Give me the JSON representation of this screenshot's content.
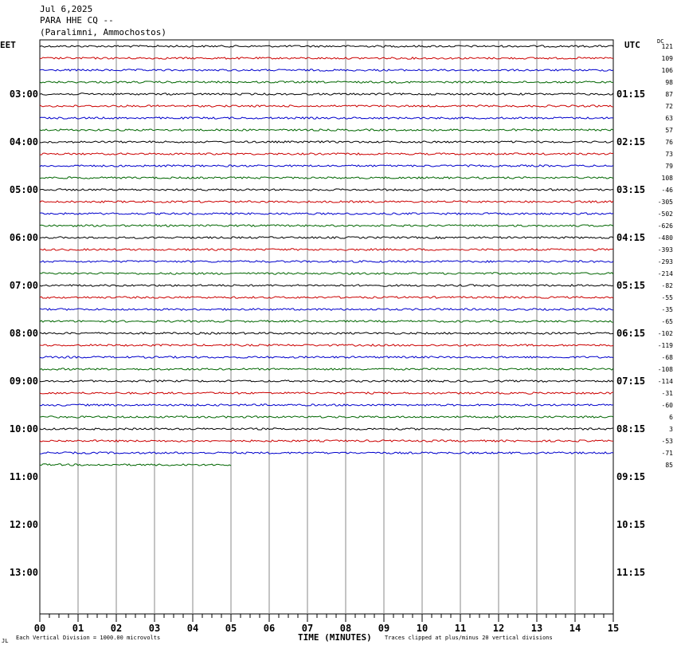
{
  "header": {
    "date": "Jul 6,2025",
    "station": "PARA HHE CQ --",
    "location": "(Paralimni, Ammochostos)"
  },
  "labels": {
    "left_tz": "EET",
    "right_tz": "UTC",
    "dc": "DC"
  },
  "footer": {
    "scale": "Each Vertical Division = 1000.00 microvolts",
    "xlabel": "TIME (MINUTES)",
    "clip": "Traces clipped at plus/minus 20 vertical divisions",
    "mark": "JL"
  },
  "chart_data": {
    "type": "line",
    "title": "PARA HHE CQ --",
    "xlabel": "TIME (MINUTES)",
    "xlim": [
      0,
      15
    ],
    "x_ticks": [
      "00",
      "01",
      "02",
      "03",
      "04",
      "05",
      "06",
      "07",
      "08",
      "09",
      "10",
      "11",
      "12",
      "13",
      "14",
      "15"
    ],
    "left_time_labels": [
      "03:00",
      "04:00",
      "05:00",
      "06:00",
      "07:00",
      "08:00",
      "09:00",
      "10:00",
      "11:00",
      "12:00",
      "13:00"
    ],
    "right_time_labels": [
      "01:15",
      "02:15",
      "03:15",
      "04:15",
      "05:15",
      "06:15",
      "07:15",
      "08:15",
      "09:15",
      "10:15",
      "11:15"
    ],
    "trace_colors": [
      "#000000",
      "#cc0000",
      "#0000cc",
      "#006600"
    ],
    "dc_offsets": [
      "121",
      "109",
      "106",
      "98",
      "87",
      "72",
      "63",
      "57",
      "76",
      "73",
      "79",
      "108",
      "-46",
      "-305",
      "-502",
      "-626",
      "-480",
      "-393",
      "-293",
      "-214",
      "-82",
      "-55",
      "-35",
      "-65",
      "-102",
      "-119",
      "-68",
      "-108",
      "-114",
      "-31",
      "-60",
      "6",
      "3",
      "-53",
      "-71",
      "85"
    ],
    "traces_full": 35,
    "last_trace_end_minute": 5.0,
    "total_rows": 48,
    "grid": true
  }
}
